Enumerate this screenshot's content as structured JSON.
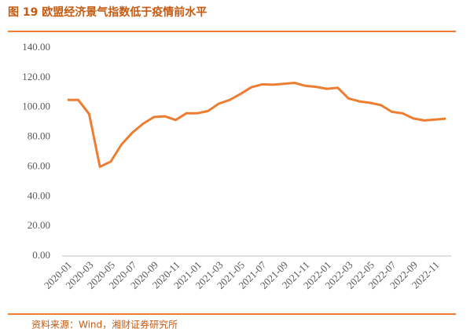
{
  "chart_data": {
    "type": "line",
    "title": "图 19 欧盟经济景气指数低于疫情前水平",
    "source": "资料来源：Wind，湘财证券研究所",
    "categories": [
      "2020-01",
      null,
      "2020-03",
      null,
      "2020-05",
      null,
      "2020-07",
      null,
      "2020-09",
      null,
      "2020-11",
      null,
      "2021-01",
      null,
      "2021-03",
      null,
      "2021-05",
      null,
      "2021-07",
      null,
      "2021-09",
      null,
      "2021-11",
      null,
      "2022-01",
      null,
      "2022-03",
      null,
      "2022-05",
      null,
      "2022-07",
      null,
      "2022-09",
      null,
      "2022-11",
      null
    ],
    "series": [
      {
        "color": "#ed7d31",
        "values": [
          105,
          105,
          95.5,
          60,
          63.5,
          75,
          83,
          89,
          93.5,
          94,
          91.5,
          96,
          96,
          97.5,
          102.5,
          105,
          109,
          113.5,
          115.5,
          115.2,
          115.8,
          116.5,
          114.5,
          113.8,
          112.5,
          113.2,
          106,
          104,
          103,
          101.5,
          97,
          96,
          92.5,
          91.2,
          91.8,
          92.4
        ]
      }
    ],
    "ylim": [
      0,
      140
    ],
    "yticks": [
      {
        "value": 0,
        "label": "0.00"
      },
      {
        "value": 20,
        "label": "20.00"
      },
      {
        "value": 40,
        "label": "40.00"
      },
      {
        "value": 60,
        "label": "60.00"
      },
      {
        "value": 80,
        "label": "80.00"
      },
      {
        "value": 100,
        "label": "100.00"
      },
      {
        "value": 120,
        "label": "120.00"
      },
      {
        "value": 140,
        "label": "140.00"
      }
    ],
    "grid": false
  }
}
